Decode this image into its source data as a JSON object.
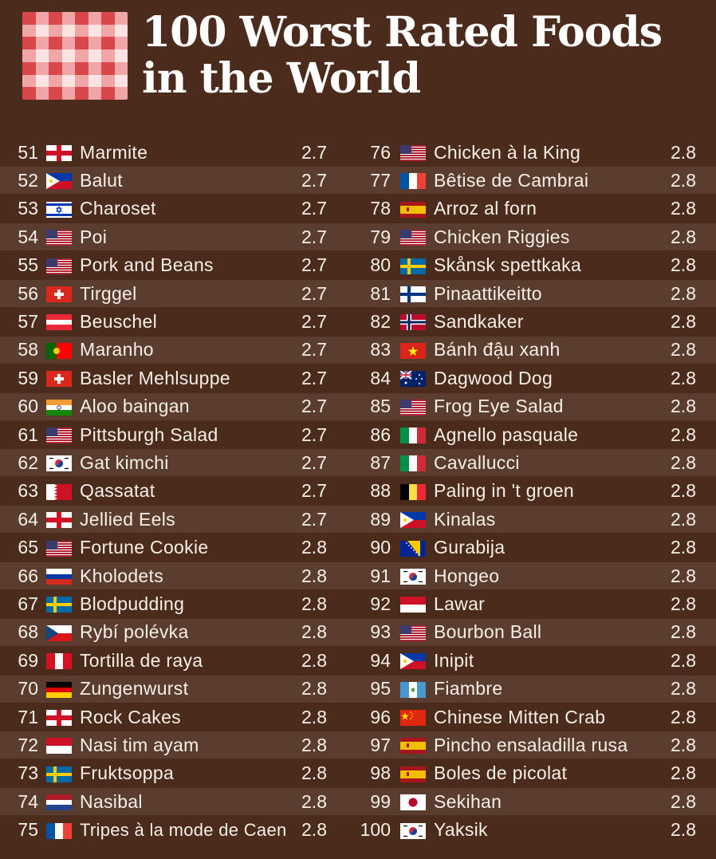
{
  "title": {
    "line1": "100 Worst Rated Foods",
    "line2": "in the World"
  },
  "colors": {
    "background": "#4b2b1b",
    "row_stripe": "rgba(255,255,255,0.085)",
    "logo_red": "#d9474a",
    "logo_pink": "#f0a5a6",
    "logo_light": "#fbe3e2"
  },
  "left_column": [
    {
      "rank": "51",
      "flag": "england",
      "name": "Marmite",
      "score": "2.7"
    },
    {
      "rank": "52",
      "flag": "philippines",
      "name": "Balut",
      "score": "2.7"
    },
    {
      "rank": "53",
      "flag": "israel",
      "name": "Charoset",
      "score": "2.7"
    },
    {
      "rank": "54",
      "flag": "usa",
      "name": "Poi",
      "score": "2.7"
    },
    {
      "rank": "55",
      "flag": "usa",
      "name": "Pork and Beans",
      "score": "2.7"
    },
    {
      "rank": "56",
      "flag": "switzerland",
      "name": "Tirggel",
      "score": "2.7"
    },
    {
      "rank": "57",
      "flag": "austria",
      "name": "Beuschel",
      "score": "2.7"
    },
    {
      "rank": "58",
      "flag": "portugal",
      "name": "Maranho",
      "score": "2.7"
    },
    {
      "rank": "59",
      "flag": "switzerland",
      "name": "Basler Mehlsuppe",
      "score": "2.7"
    },
    {
      "rank": "60",
      "flag": "india",
      "name": "Aloo baingan",
      "score": "2.7"
    },
    {
      "rank": "61",
      "flag": "usa",
      "name": "Pittsburgh Salad",
      "score": "2.7"
    },
    {
      "rank": "62",
      "flag": "south-korea",
      "name": "Gat kimchi",
      "score": "2.7"
    },
    {
      "rank": "63",
      "flag": "bahrain",
      "name": "Qassatat",
      "score": "2.7"
    },
    {
      "rank": "64",
      "flag": "england",
      "name": "Jellied Eels",
      "score": "2.7"
    },
    {
      "rank": "65",
      "flag": "usa",
      "name": "Fortune Cookie",
      "score": "2.8"
    },
    {
      "rank": "66",
      "flag": "russia",
      "name": "Kholodets",
      "score": "2.8"
    },
    {
      "rank": "67",
      "flag": "sweden",
      "name": "Blodpudding",
      "score": "2.8"
    },
    {
      "rank": "68",
      "flag": "czechia",
      "name": "Rybí polévka",
      "score": "2.8"
    },
    {
      "rank": "69",
      "flag": "peru",
      "name": "Tortilla de raya",
      "score": "2.8"
    },
    {
      "rank": "70",
      "flag": "germany",
      "name": "Zungenwurst",
      "score": "2.8"
    },
    {
      "rank": "71",
      "flag": "england",
      "name": "Rock Cakes",
      "score": "2.8"
    },
    {
      "rank": "72",
      "flag": "indonesia",
      "name": "Nasi tim ayam",
      "score": "2.8"
    },
    {
      "rank": "73",
      "flag": "sweden",
      "name": "Fruktsoppa",
      "score": "2.8"
    },
    {
      "rank": "74",
      "flag": "netherlands",
      "name": "Nasibal",
      "score": "2.8"
    },
    {
      "rank": "75",
      "flag": "france",
      "name": "Tripes à la mode de Caen",
      "score": "2.8"
    }
  ],
  "right_column": [
    {
      "rank": "76",
      "flag": "usa",
      "name": "Chicken à la King",
      "score": "2.8"
    },
    {
      "rank": "77",
      "flag": "france",
      "name": "Bêtise de Cambrai",
      "score": "2.8"
    },
    {
      "rank": "78",
      "flag": "spain",
      "name": "Arroz al forn",
      "score": "2.8"
    },
    {
      "rank": "79",
      "flag": "usa",
      "name": "Chicken Riggies",
      "score": "2.8"
    },
    {
      "rank": "80",
      "flag": "sweden",
      "name": "Skånsk spettkaka",
      "score": "2.8"
    },
    {
      "rank": "81",
      "flag": "finland",
      "name": "Pinaattikeitto",
      "score": "2.8"
    },
    {
      "rank": "82",
      "flag": "norway",
      "name": "Sandkaker",
      "score": "2.8"
    },
    {
      "rank": "83",
      "flag": "vietnam",
      "name": "Bánh đậu xanh",
      "score": "2.8"
    },
    {
      "rank": "84",
      "flag": "australia",
      "name": "Dagwood Dog",
      "score": "2.8"
    },
    {
      "rank": "85",
      "flag": "usa",
      "name": "Frog Eye Salad",
      "score": "2.8"
    },
    {
      "rank": "86",
      "flag": "italy",
      "name": "Agnello pasquale",
      "score": "2.8"
    },
    {
      "rank": "87",
      "flag": "italy",
      "name": "Cavallucci",
      "score": "2.8"
    },
    {
      "rank": "88",
      "flag": "belgium",
      "name": "Paling in 't groen",
      "score": "2.8"
    },
    {
      "rank": "89",
      "flag": "philippines",
      "name": "Kinalas",
      "score": "2.8"
    },
    {
      "rank": "90",
      "flag": "bosnia",
      "name": "Gurabija",
      "score": "2.8"
    },
    {
      "rank": "91",
      "flag": "south-korea",
      "name": "Hongeo",
      "score": "2.8"
    },
    {
      "rank": "92",
      "flag": "indonesia",
      "name": "Lawar",
      "score": "2.8"
    },
    {
      "rank": "93",
      "flag": "usa",
      "name": "Bourbon Ball",
      "score": "2.8"
    },
    {
      "rank": "94",
      "flag": "philippines",
      "name": "Inipit",
      "score": "2.8"
    },
    {
      "rank": "95",
      "flag": "guatemala",
      "name": "Fiambre",
      "score": "2.8"
    },
    {
      "rank": "96",
      "flag": "china",
      "name": "Chinese Mitten Crab",
      "score": "2.8"
    },
    {
      "rank": "97",
      "flag": "spain",
      "name": "Pincho ensaladilla rusa",
      "score": "2.8"
    },
    {
      "rank": "98",
      "flag": "spain",
      "name": "Boles de picolat",
      "score": "2.8"
    },
    {
      "rank": "99",
      "flag": "japan",
      "name": "Sekihan",
      "score": "2.8"
    },
    {
      "rank": "100",
      "flag": "south-korea",
      "name": "Yaksik",
      "score": "2.8"
    }
  ]
}
